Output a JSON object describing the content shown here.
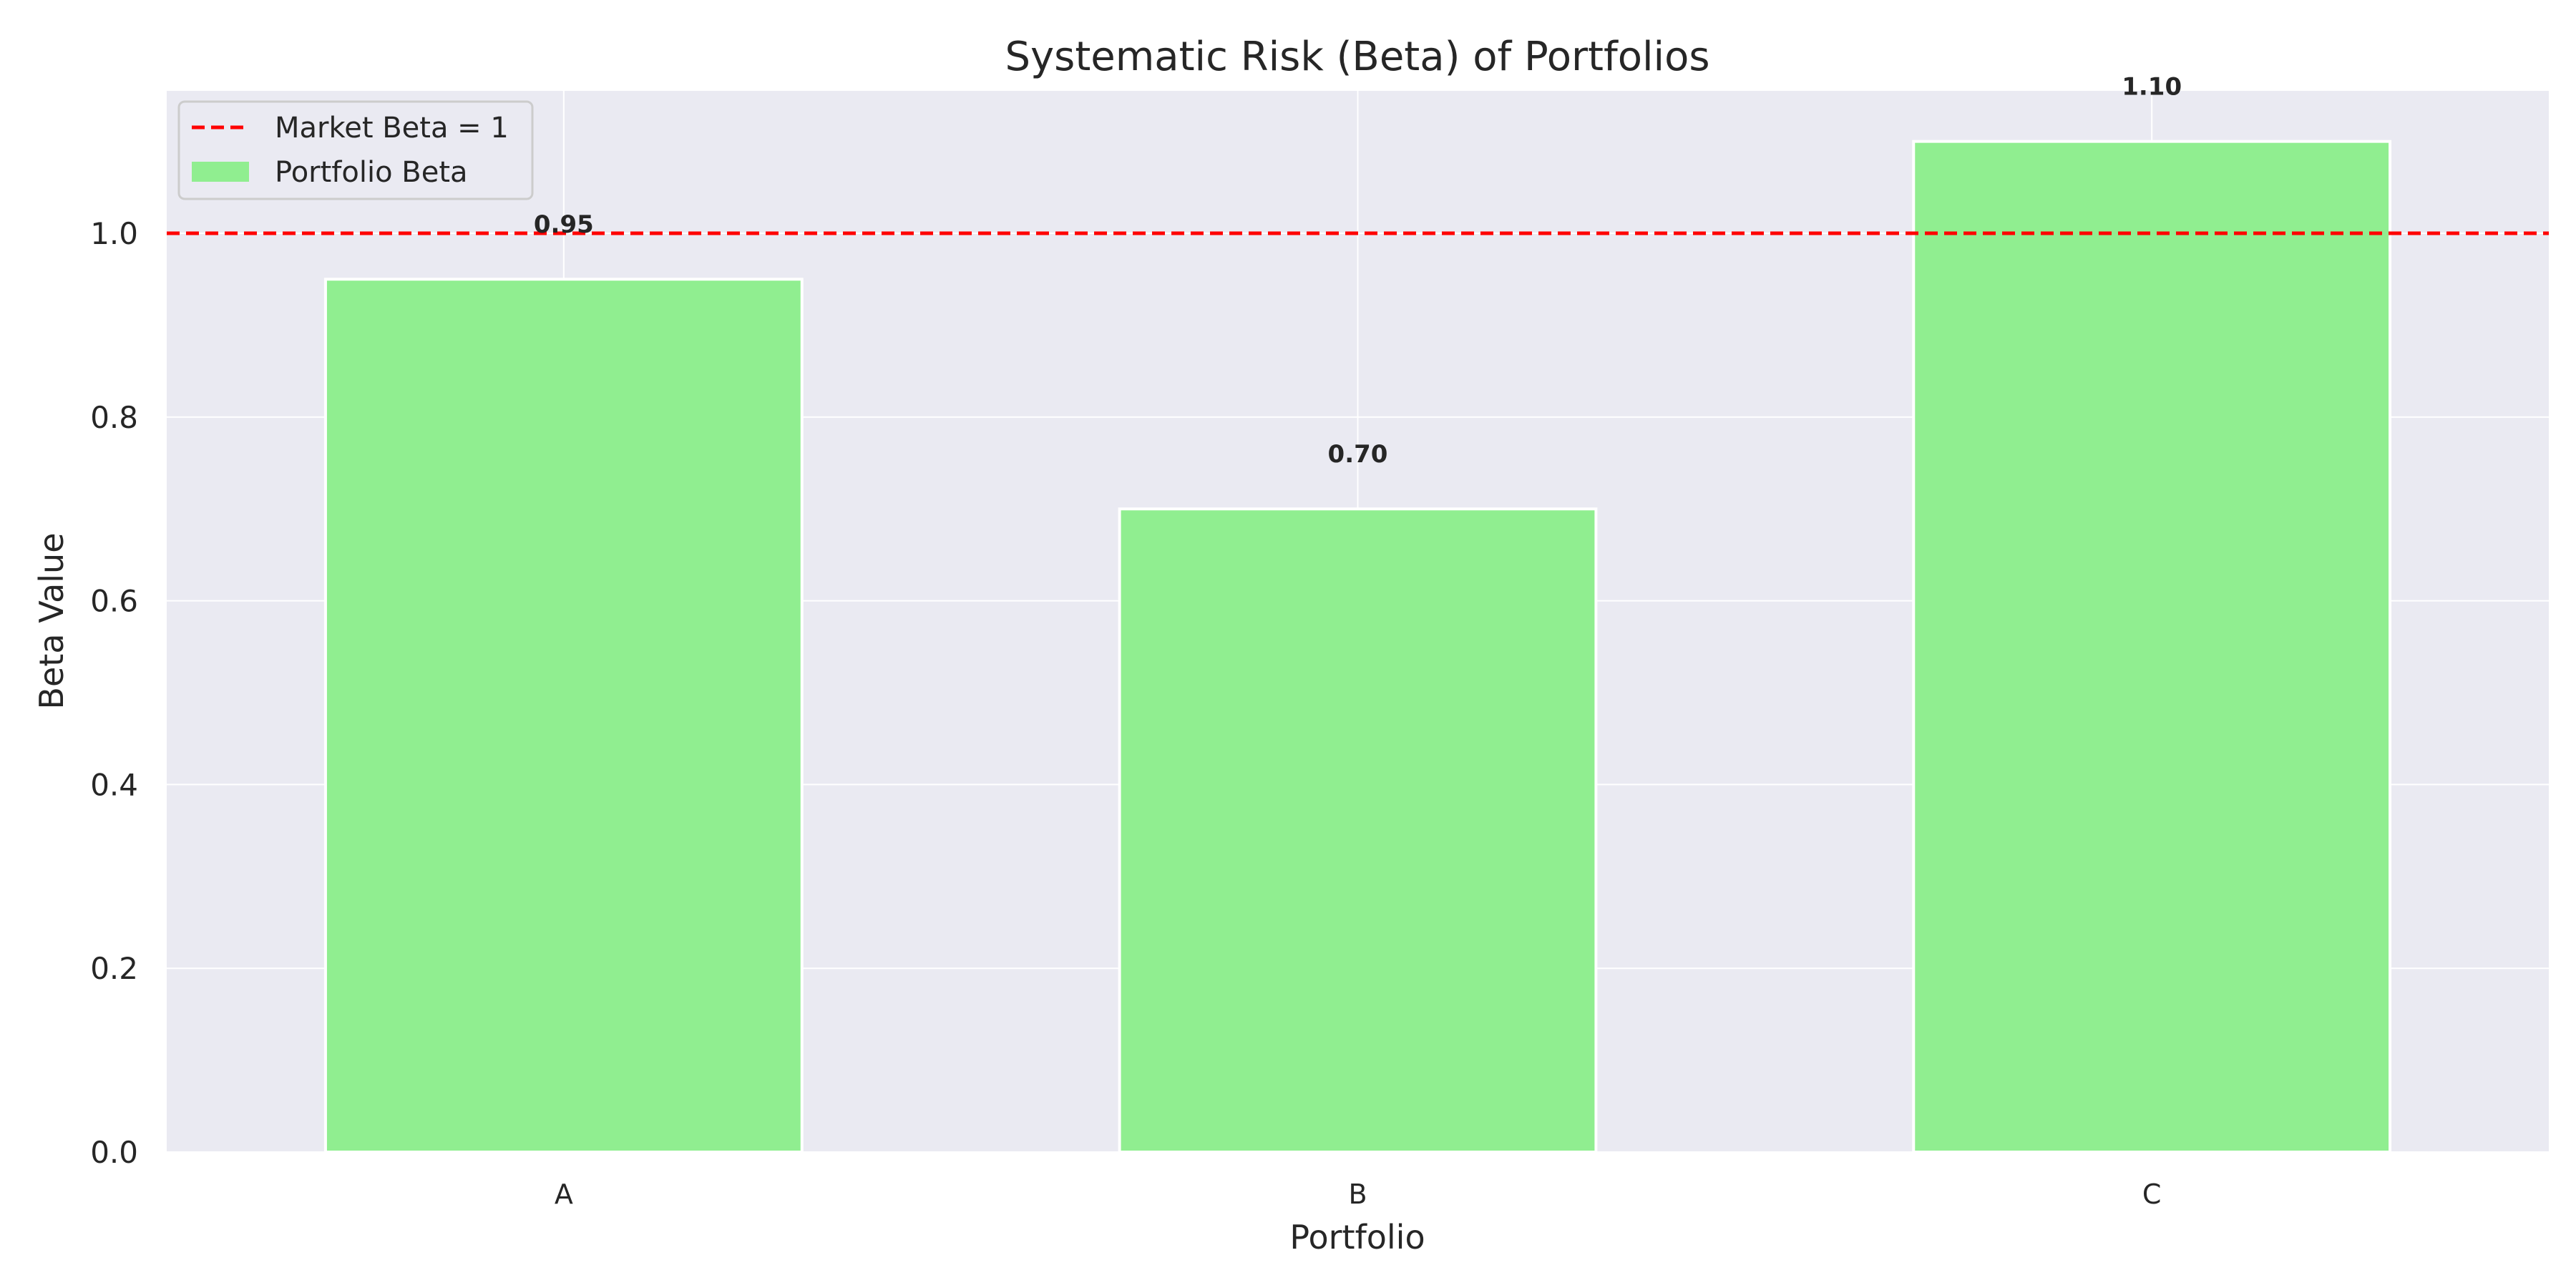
{
  "chart_data": {
    "type": "bar",
    "title": "Systematic Risk (Beta) of Portfolios",
    "xlabel": "Portfolio",
    "ylabel": "Beta Value",
    "categories": [
      "A",
      "B",
      "C"
    ],
    "series": [
      {
        "name": "Portfolio Beta",
        "values": [
          0.95,
          0.7,
          1.1
        ],
        "color": "#90EE90"
      }
    ],
    "data_labels": [
      "0.95",
      "0.70",
      "1.10"
    ],
    "reference_line": {
      "label": "Market Beta = 1",
      "y": 1.0,
      "color": "#FF0000",
      "style": "dashed"
    },
    "ylim": [
      0,
      1.155
    ],
    "yticks": [
      0.0,
      0.2,
      0.4,
      0.6,
      0.8,
      1.0
    ],
    "ytick_labels": [
      "0.0",
      "0.2",
      "0.4",
      "0.6",
      "0.8",
      "1.0"
    ],
    "grid": true,
    "legend_position": "top-left",
    "background_color": "#EAEAF2"
  }
}
